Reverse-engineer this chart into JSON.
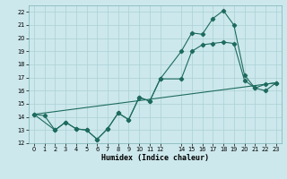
{
  "title": "",
  "xlabel": "Humidex (Indice chaleur)",
  "xlim": [
    -0.5,
    23.5
  ],
  "ylim": [
    12,
    22.5
  ],
  "xticks": [
    0,
    1,
    2,
    3,
    4,
    5,
    6,
    7,
    8,
    9,
    10,
    11,
    12,
    14,
    15,
    16,
    17,
    18,
    19,
    20,
    21,
    22,
    23
  ],
  "yticks": [
    12,
    13,
    14,
    15,
    16,
    17,
    18,
    19,
    20,
    21,
    22
  ],
  "bg_color": "#cce8ec",
  "grid_color": "#aad0d6",
  "line_color": "#1e6b5e",
  "line1_x": [
    0,
    1,
    2,
    3,
    4,
    5,
    6,
    7,
    8,
    9,
    10,
    11,
    12,
    14,
    15,
    16,
    17,
    18,
    19,
    20,
    21,
    22,
    23
  ],
  "line1_y": [
    14.2,
    14.1,
    13.0,
    13.6,
    13.1,
    13.0,
    12.3,
    13.1,
    14.3,
    13.8,
    15.5,
    15.2,
    16.9,
    19.0,
    20.4,
    20.3,
    21.5,
    22.1,
    21.0,
    17.2,
    16.2,
    16.5,
    16.6
  ],
  "line2_x": [
    0,
    2,
    3,
    4,
    5,
    6,
    7,
    8,
    9,
    10,
    11,
    12,
    14,
    15,
    16,
    17,
    18,
    19,
    20,
    21,
    22,
    23
  ],
  "line2_y": [
    14.2,
    13.0,
    13.6,
    13.1,
    13.0,
    12.3,
    13.1,
    14.3,
    13.8,
    15.5,
    15.2,
    16.9,
    16.9,
    19.0,
    19.5,
    19.6,
    19.7,
    19.6,
    16.8,
    16.2,
    16.0,
    16.6
  ],
  "line3_x": [
    0,
    23
  ],
  "line3_y": [
    14.2,
    16.6
  ],
  "figsize": [
    3.2,
    2.0
  ],
  "dpi": 100
}
